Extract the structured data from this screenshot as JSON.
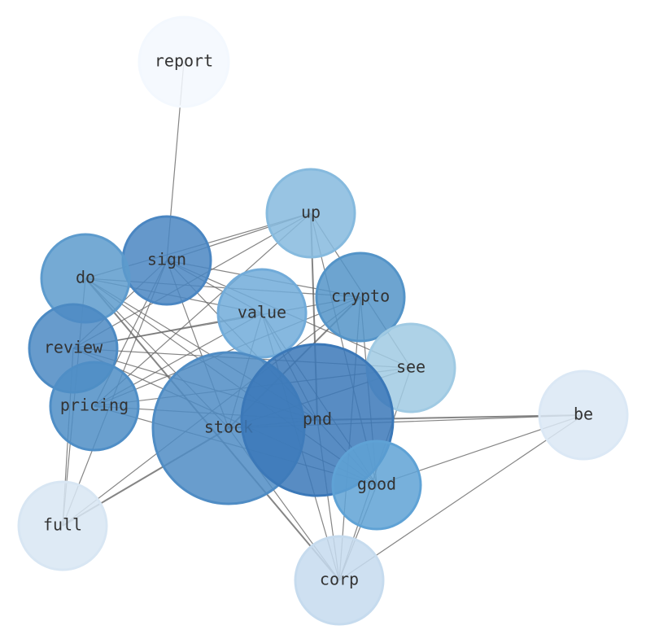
{
  "nodes": [
    {
      "label": "report"
    },
    {
      "label": "up"
    },
    {
      "label": "sign"
    },
    {
      "label": "do"
    },
    {
      "label": "crypto"
    },
    {
      "label": "value"
    },
    {
      "label": "review"
    },
    {
      "label": "see"
    },
    {
      "label": "pricing"
    },
    {
      "label": "stock"
    },
    {
      "label": "pnd"
    },
    {
      "label": "be"
    },
    {
      "label": "good"
    },
    {
      "label": "full"
    },
    {
      "label": "corp"
    }
  ]
}
